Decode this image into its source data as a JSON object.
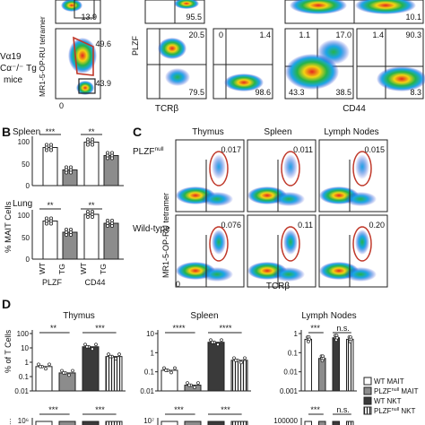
{
  "panelA": {
    "row_label_1": "Vα19",
    "row_label_2": "Cα⁻/⁻ Tg",
    "row_label_3": "mice",
    "y_axis_mr1": "MR1-5-OP-RU tetramer",
    "y_axis_plzf": "PLZF",
    "x_axis_tcrb": "TCRβ",
    "x_axis_cd44": "CD44",
    "zero_label": "0",
    "top_values": [
      "13.9",
      "95.5",
      "10.1"
    ],
    "row2_values": [
      "49.6",
      "43.9",
      "20.5",
      "79.5",
      "0",
      "1.4",
      "98.6",
      "1.1",
      "17.0",
      "43.3",
      "38.5",
      "1.4",
      "90.3",
      "8.3"
    ]
  },
  "panelB": {
    "letter": "B",
    "ylabel": "% MAIT Cells",
    "xlabels": [
      "WT",
      "TG",
      "WT",
      "TG"
    ],
    "group_labels": [
      "PLZF",
      "CD44"
    ],
    "spleen": {
      "title": "Spleen",
      "sig": [
        "***",
        "**"
      ],
      "ticks": [
        "100",
        "50",
        "0"
      ],
      "chart_data": {
        "type": "bar",
        "categories": [
          "PLZF WT",
          "PLZF TG",
          "CD44 WT",
          "CD44 TG"
        ],
        "values": [
          85,
          35,
          97,
          67
        ],
        "ylim": [
          0,
          100
        ]
      }
    },
    "lung": {
      "title": "Lung",
      "sig": [
        "**",
        "**"
      ],
      "ticks": [
        "100",
        "50",
        "0"
      ],
      "chart_data": {
        "type": "bar",
        "categories": [
          "PLZF WT",
          "PLZF TG",
          "CD44 WT",
          "CD44 TG"
        ],
        "values": [
          85,
          60,
          100,
          80
        ],
        "ylim": [
          0,
          100
        ]
      }
    }
  },
  "panelC": {
    "letter": "C",
    "columns": [
      "Thymus",
      "Spleen",
      "Lymph Nodes"
    ],
    "row1_label": "PLZF",
    "row1_sup": "null",
    "row2_label": "Wild-type",
    "y_axis": "MR1-5-OP-RU tetramer",
    "x_axis": "TCRβ",
    "zero_label": "0",
    "row1_values": [
      "0.017",
      "0.011",
      "0.015"
    ],
    "row2_values": [
      "0.076",
      "0.11",
      "0.20"
    ]
  },
  "panelD": {
    "letter": "D",
    "ylabel": "% of T Cells",
    "ylabel_bottom": "...",
    "groups": [
      {
        "title": "Thymus",
        "sig": [
          "**",
          "***"
        ],
        "ticks": [
          "100",
          "10",
          "1",
          "0.1",
          "0.01"
        ],
        "bottom_sig": [
          "***",
          "***"
        ],
        "bottom_tick": "10⁶",
        "chart_data": {
          "type": "bar",
          "categories": [
            "WT MAIT",
            "PLZF null MAIT",
            "WT NKT",
            "PLZF null NKT"
          ],
          "values": [
            0.5,
            0.18,
            12,
            2.5
          ],
          "yscale": "log",
          "ylim": [
            0.01,
            100
          ]
        }
      },
      {
        "title": "Spleen",
        "sig": [
          "****",
          "****"
        ],
        "ticks": [
          "10",
          "1",
          "0.1",
          "0.01"
        ],
        "bottom_sig": [
          "***",
          "***"
        ],
        "bottom_tick": "10⁷",
        "chart_data": {
          "type": "bar",
          "categories": [
            "WT MAIT",
            "PLZF null MAIT",
            "WT NKT",
            "PLZF null NKT"
          ],
          "values": [
            0.12,
            0.02,
            3.5,
            0.4
          ],
          "yscale": "log",
          "ylim": [
            0.01,
            10
          ]
        }
      },
      {
        "title": "Lymph Nodes",
        "sig": [
          "***",
          "n.s."
        ],
        "ticks": [
          "1",
          "0.1",
          "0.01",
          "0.001"
        ],
        "bottom_sig": [
          "***",
          "n.s."
        ],
        "bottom_tick": "100000",
        "chart_data": {
          "type": "bar",
          "categories": [
            "WT MAIT",
            "PLZF null MAIT",
            "WT NKT",
            "PLZF null NKT"
          ],
          "values": [
            0.5,
            0.05,
            0.6,
            0.5
          ],
          "yscale": "log",
          "ylim": [
            0.001,
            1
          ]
        }
      }
    ],
    "legend": [
      {
        "label": "WT MAIT",
        "sup": ""
      },
      {
        "label": "PLZF",
        "sup": "null",
        "suffix": " MAIT"
      },
      {
        "label": "WT NKT",
        "sup": ""
      },
      {
        "label": "PLZF",
        "sup": "null",
        "suffix": " NKT"
      }
    ]
  },
  "colors": {
    "dark_bar": "#3a3a3a",
    "grey_bar": "#8c8c8c",
    "gate_red": "#c0392b",
    "hot": "#e4261f",
    "warm": "#f4d312",
    "mid": "#25b34a",
    "cool": "#1aa6e6",
    "cold": "#1d2fd1"
  }
}
